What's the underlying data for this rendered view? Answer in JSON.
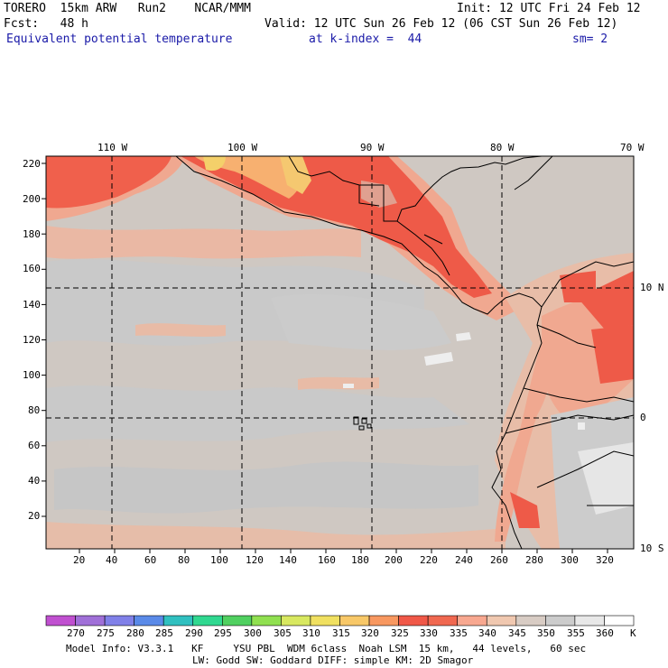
{
  "header": {
    "model": "TORERO  15km ARW   Run2    NCAR/MMM",
    "init": "Init: 12 UTC Fri 24 Feb 12",
    "fcst": "Fcst:   48 h",
    "valid": "Valid: 12 UTC Sun 26 Feb 12 (06 CST Sun 26 Feb 12)",
    "field": "Equivalent potential temperature",
    "level": "at k-index =  44",
    "smooth": "sm= 2"
  },
  "axes": {
    "lon_labels": [
      "110 W",
      "100 W",
      "90 W",
      "80 W",
      "70 W"
    ],
    "lat_labels": [
      "10 N",
      "0",
      "10 S"
    ],
    "y_ticks": [
      "220",
      "200",
      "180",
      "160",
      "140",
      "120",
      "100",
      "80",
      "60",
      "40",
      "20"
    ],
    "x_ticks": [
      "20",
      "40",
      "60",
      "80",
      "100",
      "120",
      "140",
      "160",
      "180",
      "200",
      "220",
      "240",
      "260",
      "280",
      "300",
      "320"
    ]
  },
  "colorbar": {
    "labels": [
      "270",
      "275",
      "280",
      "285",
      "290",
      "295",
      "300",
      "305",
      "310",
      "315",
      "320",
      "325",
      "330",
      "335",
      "340",
      "345",
      "350",
      "355",
      "360"
    ],
    "unit": "K",
    "colors": [
      "#c050d0",
      "#a070d8",
      "#8080e8",
      "#5a8ae8",
      "#30c0c0",
      "#30d890",
      "#50d060",
      "#90e050",
      "#d8e860",
      "#f0e060",
      "#f8c868",
      "#f89860",
      "#f05848",
      "#f06850",
      "#f8a890",
      "#f0c8b0",
      "#d8ccc4",
      "#cccccc",
      "#e8e8e8",
      "#ffffff"
    ]
  },
  "footer": {
    "line1": "Model Info: V3.3.1   KF     YSU PBL  WDM 6class  Noah LSM  15 km,   44 levels,   60 sec",
    "line2": "LW: Godd SW: Goddard DIFF: simple KM: 2D Smagor"
  }
}
